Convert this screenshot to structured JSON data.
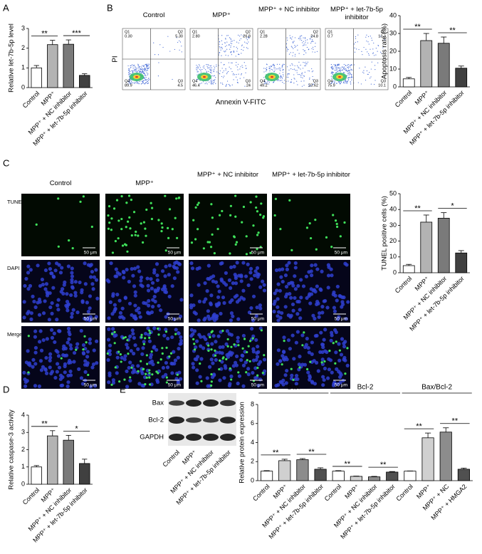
{
  "panel_labels": [
    "A",
    "B",
    "C",
    "D",
    "E"
  ],
  "flow_cytometry": {
    "y_label": "PI",
    "x_label": "Annexin V-FITC",
    "panels": [
      {
        "title": "Control",
        "gates": [
          {
            "name": "Q1",
            "value": "0.30"
          },
          {
            "name": "Q2",
            "value": "5.30"
          },
          {
            "name": "Q4",
            "value": "89.9"
          },
          {
            "name": "Q3",
            "value": "4.5"
          }
        ]
      },
      {
        "title": "MPP⁺",
        "gates": [
          {
            "name": "Q1",
            "value": "2.80"
          },
          {
            "name": "Q2",
            "value": "26.8"
          },
          {
            "name": "Q4",
            "value": "46.4"
          },
          {
            "name": "Q3",
            "value": "24"
          }
        ]
      },
      {
        "title": "MPP⁺ + NC inhibitor",
        "gates": [
          {
            "name": "Q1",
            "value": "2.28"
          },
          {
            "name": "Q2",
            "value": "24.8"
          },
          {
            "name": "Q4",
            "value": "49.2"
          },
          {
            "name": "Q3",
            "value": "23.62"
          }
        ]
      },
      {
        "title": "MPP⁺ + let-7b-5p inhibitor",
        "gates": [
          {
            "name": "Q1",
            "value": "0.7"
          },
          {
            "name": "Q2",
            "value": "13.3"
          },
          {
            "name": "Q4",
            "value": "75.9"
          },
          {
            "name": "Q3",
            "value": "10.1"
          }
        ]
      }
    ]
  },
  "microscopy": {
    "columns": [
      "Control",
      "MPP⁺",
      "MPP⁺ + NC inhibitor",
      "MPP⁺ + let-7b-5p inhibitor"
    ],
    "rows": [
      "TUNEL",
      "DAPI",
      "Merged"
    ],
    "scale_bar": "50 μm"
  },
  "western_blot": {
    "bands": [
      "Bax",
      "Bcl-2",
      "GAPDH"
    ],
    "lanes": [
      "Control",
      "MPP⁺",
      "MPP⁺ + NC inhibitor",
      "MPP⁺ + let-7b-5p inhibitor"
    ]
  },
  "chart_data": [
    {
      "type": "bar",
      "ylabel": "Relative let-7b-5p level",
      "categories": [
        "Control",
        "MPP⁺",
        "MPP⁺ + NC inhibitor",
        "MPP⁺ + let-7b-5p inhibitor"
      ],
      "values": [
        1.0,
        2.18,
        2.2,
        0.62
      ],
      "errors": [
        0.12,
        0.22,
        0.22,
        0.08
      ],
      "colors": [
        "#ffffff",
        "#b3b3b3",
        "#7a7a7a",
        "#404040"
      ],
      "ylim": [
        0,
        3
      ],
      "yticks": [
        0,
        1,
        2,
        3
      ],
      "significance": [
        {
          "label": "**",
          "span": [
            0,
            1
          ]
        },
        {
          "label": "***",
          "span": [
            2,
            3
          ]
        }
      ]
    },
    {
      "type": "bar",
      "ylabel": "Apoptosis rate (%)",
      "categories": [
        "Control",
        "MPP⁺",
        "MPP⁺ + NC inhibitor",
        "MPP⁺ + let-7b-5p inhibitor"
      ],
      "values": [
        4.5,
        26,
        24.5,
        10.5
      ],
      "errors": [
        0.8,
        4,
        3.5,
        1.2
      ],
      "colors": [
        "#ffffff",
        "#b3b3b3",
        "#7a7a7a",
        "#404040"
      ],
      "ylim": [
        0,
        40
      ],
      "yticks": [
        0,
        10,
        20,
        30,
        40
      ],
      "significance": [
        {
          "label": "**",
          "span": [
            0,
            1
          ]
        },
        {
          "label": "**",
          "span": [
            2,
            3
          ]
        }
      ]
    },
    {
      "type": "bar",
      "ylabel": "TUNEL positive cells (%)",
      "categories": [
        "Control",
        "MPP⁺",
        "MPP⁺ + NC inhibitor",
        "MPP⁺ + let-7b-5p inhibitor"
      ],
      "values": [
        4.5,
        32,
        34.5,
        12.5
      ],
      "errors": [
        0.8,
        4.5,
        3.5,
        1.5
      ],
      "colors": [
        "#ffffff",
        "#b3b3b3",
        "#7a7a7a",
        "#404040"
      ],
      "ylim": [
        0,
        50
      ],
      "yticks": [
        0,
        10,
        20,
        30,
        40,
        50
      ],
      "significance": [
        {
          "label": "**",
          "span": [
            0,
            1
          ]
        },
        {
          "label": "*",
          "span": [
            2,
            3
          ]
        }
      ]
    },
    {
      "type": "bar",
      "ylabel": "Relative caspase-3 activity",
      "categories": [
        "Control",
        "MPP⁺",
        "MPP⁺ + NC inhibitor",
        "MPP⁺ + let-7b-5p inhibitor"
      ],
      "values": [
        1.0,
        2.8,
        2.55,
        1.2
      ],
      "errors": [
        0.08,
        0.3,
        0.28,
        0.25
      ],
      "colors": [
        "#ffffff",
        "#b3b3b3",
        "#7a7a7a",
        "#404040"
      ],
      "ylim": [
        0,
        4
      ],
      "yticks": [
        0,
        1,
        2,
        3,
        4
      ],
      "significance": [
        {
          "label": "**",
          "span": [
            0,
            1
          ]
        },
        {
          "label": "*",
          "span": [
            2,
            3
          ]
        }
      ]
    },
    {
      "type": "bar",
      "ylabel": "Relative protein expression",
      "categories": [
        "Control",
        "MPP⁺",
        "MPP⁺ + NC inhibitor",
        "MPP⁺ + let-7b-5p inhibitor",
        "Control",
        "MPP⁺",
        "MPP⁺ + NC inhibitor",
        "MPP⁺ + let-7b-5p inhibitor",
        "Control",
        "MPP⁺",
        "MPP⁺ + NC",
        "MPP⁺ + HMGA2"
      ],
      "values": [
        1.0,
        2.1,
        2.2,
        1.2,
        1.0,
        0.45,
        0.4,
        0.9,
        1.0,
        4.5,
        5.1,
        1.2
      ],
      "errors": [
        0.05,
        0.15,
        0.12,
        0.15,
        0.05,
        0.03,
        0.05,
        0.06,
        0.02,
        0.5,
        0.45,
        0.12
      ],
      "colors": [
        "#ffffff",
        "#d0d0d0",
        "#8c8c8c",
        "#505050",
        "#ffffff",
        "#d0d0d0",
        "#8c8c8c",
        "#505050",
        "#ffffff",
        "#d0d0d0",
        "#8c8c8c",
        "#505050"
      ],
      "ylim": [
        0,
        8
      ],
      "yticks": [
        0,
        2,
        4,
        6,
        8
      ],
      "groups": [
        {
          "label": "Bax",
          "span": [
            0,
            3
          ]
        },
        {
          "label": "Bcl-2",
          "span": [
            4,
            7
          ]
        },
        {
          "label": "Bax/Bcl-2",
          "span": [
            8,
            11
          ]
        }
      ],
      "significance": [
        {
          "label": "**",
          "span": [
            0,
            1
          ]
        },
        {
          "label": "**",
          "span": [
            2,
            3
          ]
        },
        {
          "label": "**",
          "span": [
            4,
            5
          ]
        },
        {
          "label": "**",
          "span": [
            6,
            7
          ]
        },
        {
          "label": "**",
          "span": [
            8,
            9
          ]
        },
        {
          "label": "**",
          "span": [
            10,
            11
          ]
        }
      ]
    }
  ]
}
